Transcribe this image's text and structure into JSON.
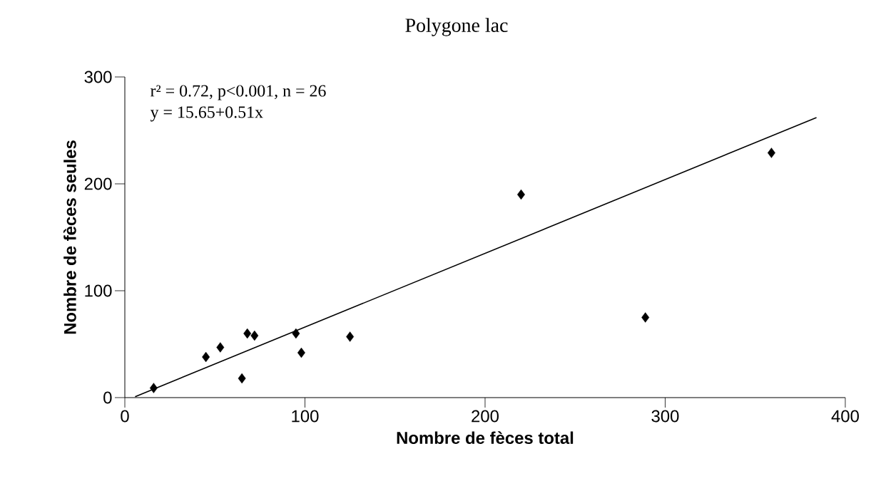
{
  "chart_data": {
    "type": "scatter",
    "title": "Polygone lac",
    "xlabel": "Nombre de fèces total",
    "ylabel": "Nombre de fèces seules",
    "xlim": [
      0,
      400
    ],
    "ylim": [
      0,
      300
    ],
    "xticks": [
      0,
      100,
      200,
      300,
      400
    ],
    "yticks": [
      0,
      100,
      200,
      300
    ],
    "annotations": [
      "r² = 0.72, p<0.001, n = 26",
      "y = 15.65+0.51x"
    ],
    "series": [
      {
        "color": "#000000",
        "marker": "diamond",
        "x": [
          16,
          45,
          53,
          65,
          68,
          72,
          95,
          98,
          125,
          220,
          289,
          359
        ],
        "values": [
          9,
          38,
          47,
          18,
          60,
          58,
          60,
          42,
          57,
          190,
          75,
          229
        ]
      },
      {
        "type": "line",
        "color": "#000000",
        "marker": "none",
        "line_style": "solid",
        "x": [
          5.7,
          384
        ],
        "values": [
          0.9,
          262
        ]
      }
    ]
  }
}
